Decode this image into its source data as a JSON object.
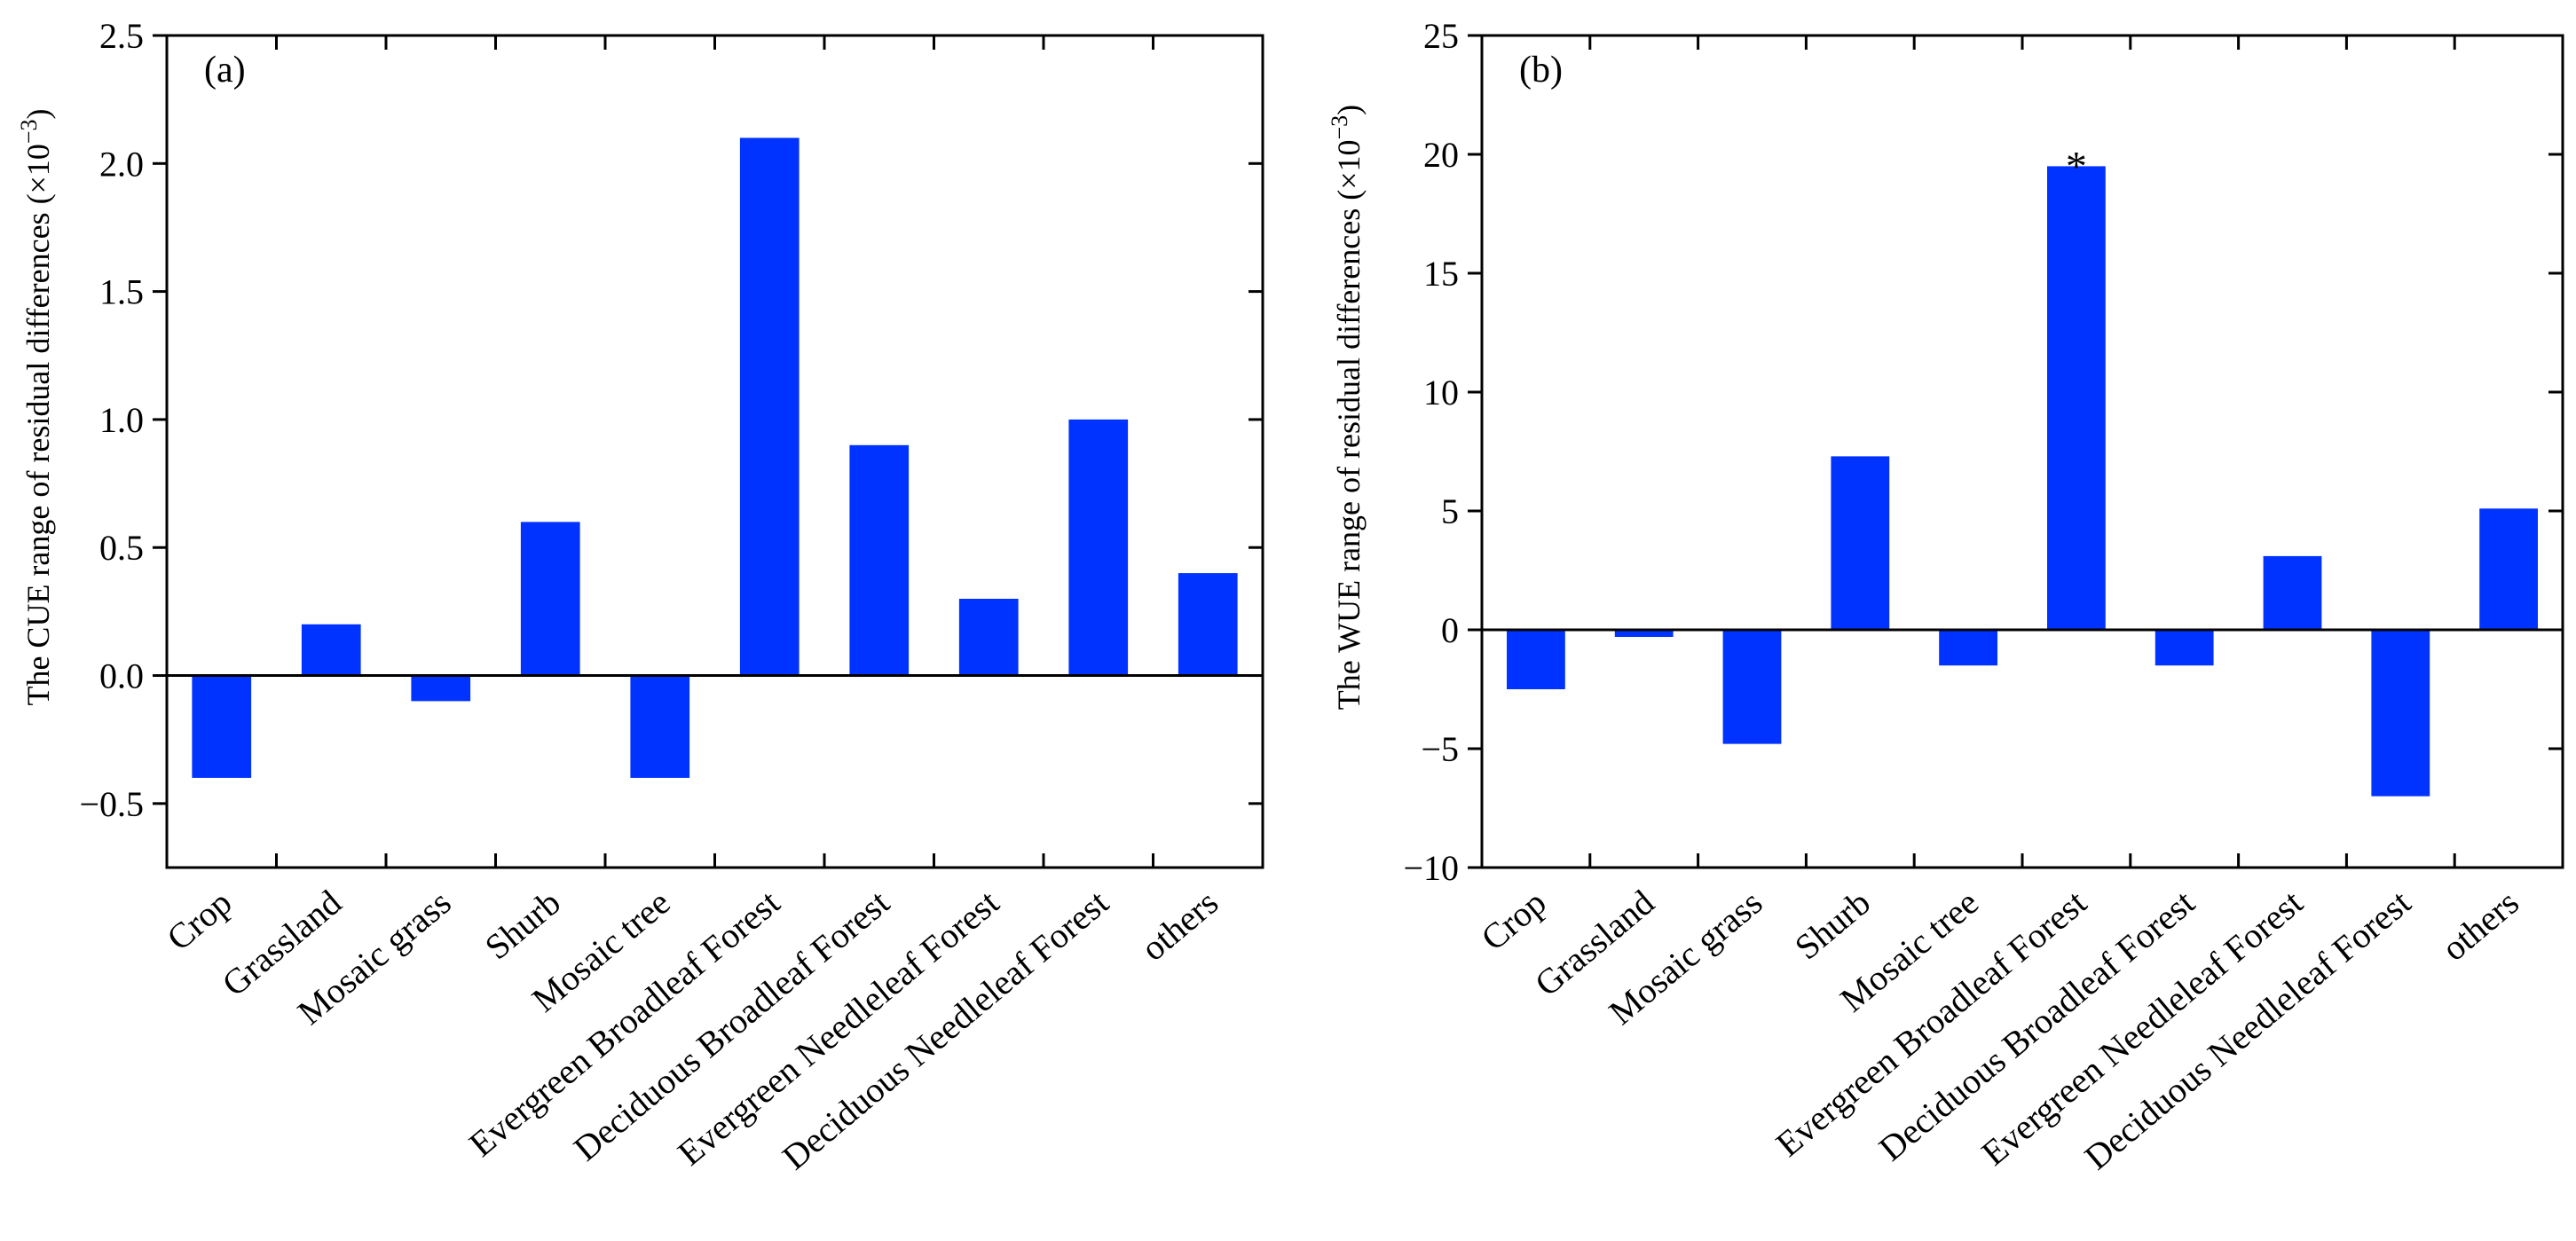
{
  "chart_data": [
    {
      "type": "bar",
      "panel_label": "(a)",
      "ylabel": "The CUE range of residual differences",
      "ylabel_unit_base": "(×10",
      "ylabel_unit_exp": "−3",
      "ylabel_unit_close": ")",
      "ylim": [
        -0.75,
        2.5
      ],
      "yticks": [
        -0.5,
        0.0,
        0.5,
        1.0,
        1.5,
        2.0,
        2.5
      ],
      "ytick_labels": [
        "−0.5",
        "0.0",
        "0.5",
        "1.0",
        "1.5",
        "2.0",
        "2.5"
      ],
      "categories": [
        "Crop",
        "Grassland",
        "Mosaic grass",
        "Shurb",
        "Mosaic tree",
        "Evergreen Broadleaf Forest",
        "Deciduous Broadleaf Forest",
        "Evergreen Needleleaf Forest",
        "Deciduous Needleleaf Forest",
        "others"
      ],
      "values": [
        -0.4,
        0.2,
        -0.1,
        0.6,
        -0.4,
        2.1,
        0.9,
        0.3,
        1.0,
        0.4
      ],
      "bar_color": "#0033ff",
      "annotations": []
    },
    {
      "type": "bar",
      "panel_label": "(b)",
      "ylabel": "The WUE range of residual differences",
      "ylabel_unit_base": "(×10",
      "ylabel_unit_exp": "−3",
      "ylabel_unit_close": ")",
      "ylim": [
        -10,
        25
      ],
      "yticks": [
        -10,
        -5,
        0,
        5,
        10,
        15,
        20,
        25
      ],
      "ytick_labels": [
        "−10",
        "−5",
        "0",
        "5",
        "10",
        "15",
        "20",
        "25"
      ],
      "categories": [
        "Crop",
        "Grassland",
        "Mosaic grass",
        "Shurb",
        "Mosaic tree",
        "Evergreen Broadleaf Forest",
        "Deciduous Broadleaf Forest",
        "Evergreen Needleleaf Forest",
        "Deciduous Needleleaf Forest",
        "others"
      ],
      "values": [
        -2.5,
        -0.3,
        -4.8,
        7.3,
        -1.5,
        19.5,
        -1.5,
        3.1,
        -7.0,
        5.1
      ],
      "bar_color": "#0033ff",
      "annotations": [
        {
          "category_index": 5,
          "text": "*"
        }
      ]
    }
  ]
}
